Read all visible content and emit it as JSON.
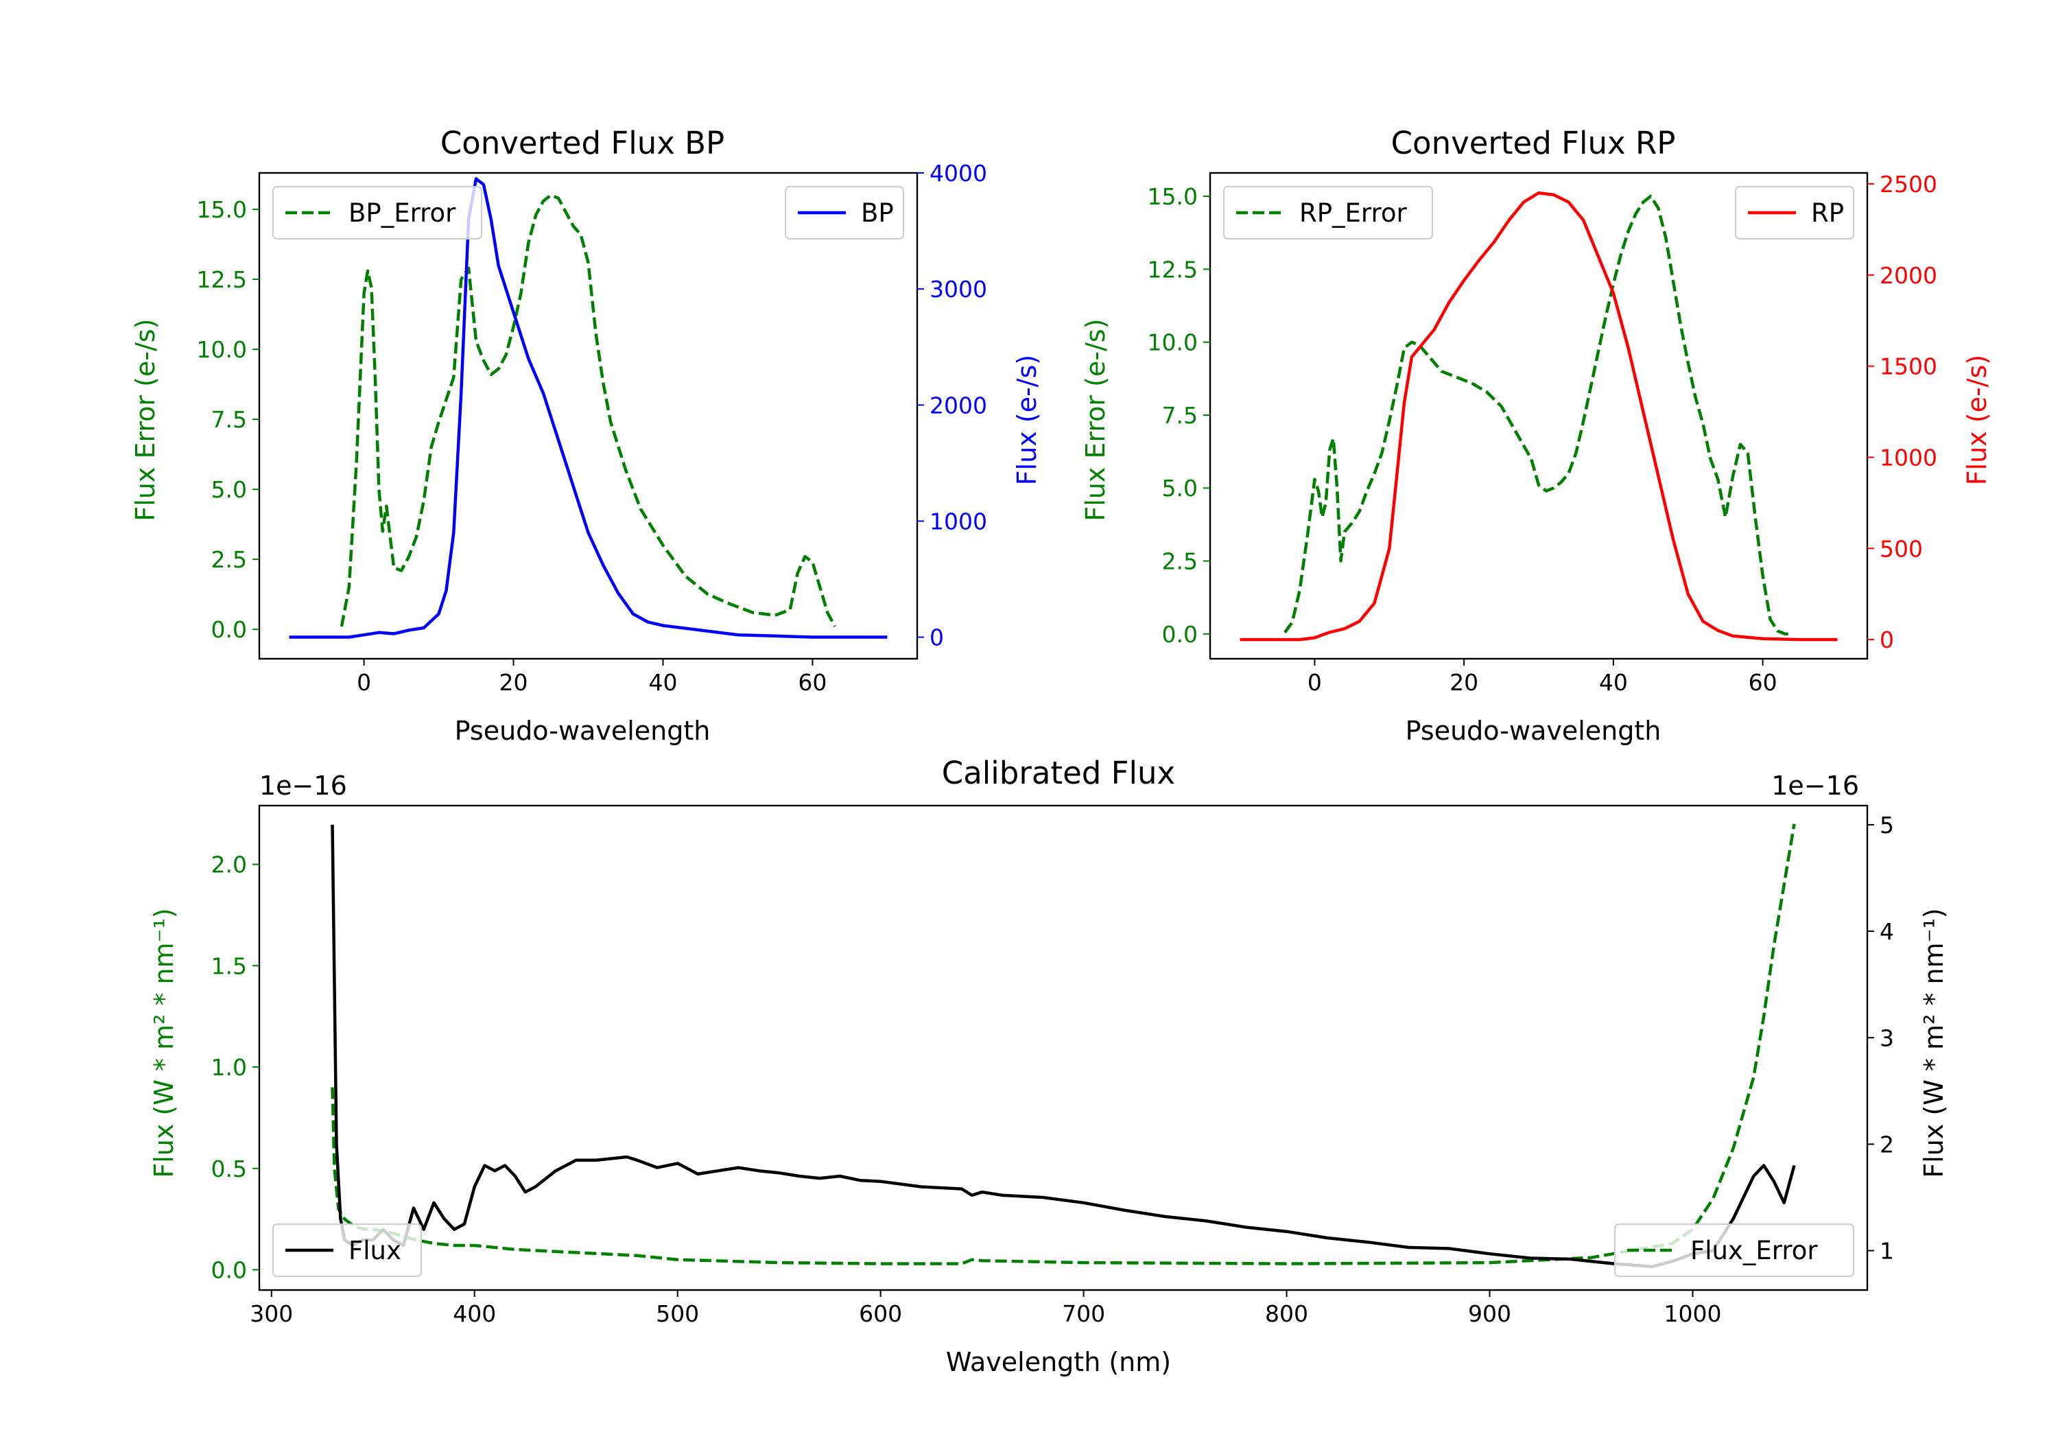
{
  "figure": {
    "background": "#ffffff"
  },
  "chart_data": [
    {
      "id": "bp",
      "type": "line",
      "title": "Converted Flux BP",
      "xlabel": "Pseudo-wavelength",
      "ylabel_left": "Flux Error (e-/s)",
      "ylabel_right": "Flux (e-/s)",
      "xlim": [
        -14,
        74
      ],
      "ylim_left": [
        -1.05,
        16.3
      ],
      "ylim_right": [
        -186,
        4000
      ],
      "xticks": [
        0,
        20,
        40,
        60
      ],
      "xtick_labels": [
        "0",
        "20",
        "40",
        "60"
      ],
      "yticks_left": [
        0,
        2.5,
        5,
        7.5,
        10,
        12.5,
        15
      ],
      "ytick_labels_left": [
        "0.0",
        "2.5",
        "5.0",
        "7.5",
        "10.0",
        "12.5",
        "15.0"
      ],
      "yticks_right": [
        0,
        1000,
        2000,
        3000,
        4000
      ],
      "ytick_labels_right": [
        "0",
        "1000",
        "2000",
        "3000",
        "4000"
      ],
      "left_axis_color": "#008000",
      "right_axis_color": "#0000ff",
      "legend_left_position": "upper-left",
      "legend_right_position": "upper-right",
      "series_left": {
        "name": "BP_Error",
        "color": "#008000",
        "style": "dashed",
        "x": [
          -3,
          -2,
          -1,
          0,
          0.5,
          1,
          1.5,
          2,
          2.5,
          3,
          3.5,
          4,
          5,
          6,
          7,
          8,
          9,
          10,
          11,
          12,
          13,
          14,
          15,
          16,
          17,
          18,
          19,
          20,
          21,
          22,
          23,
          24,
          25,
          26,
          27,
          28,
          29,
          30,
          31,
          32,
          33,
          35,
          37,
          40,
          43,
          46,
          49,
          52,
          55,
          57,
          58,
          59,
          60,
          61,
          62,
          63
        ],
        "y": [
          0.1,
          1.5,
          6.0,
          12.0,
          12.8,
          12.2,
          9.0,
          5.0,
          3.5,
          4.4,
          3.3,
          2.2,
          2.1,
          2.6,
          3.3,
          4.6,
          6.5,
          7.4,
          8.2,
          9.0,
          12.5,
          12.9,
          10.3,
          9.6,
          9.1,
          9.3,
          9.8,
          10.8,
          12.0,
          13.8,
          14.8,
          15.3,
          15.5,
          15.4,
          14.9,
          14.4,
          14.1,
          13.1,
          10.6,
          8.8,
          7.4,
          5.7,
          4.3,
          3.0,
          1.9,
          1.25,
          0.9,
          0.6,
          0.5,
          0.7,
          2.0,
          2.6,
          2.4,
          1.5,
          0.6,
          0.1
        ]
      },
      "series_right": {
        "name": "BP",
        "color": "#0000ff",
        "style": "solid",
        "x": [
          -10,
          -5,
          -2,
          0,
          2,
          4,
          6,
          8,
          10,
          11,
          12,
          13,
          14,
          15,
          16,
          17,
          18,
          20,
          22,
          24,
          26,
          28,
          30,
          32,
          34,
          36,
          38,
          40,
          45,
          50,
          55,
          60,
          65,
          70
        ],
        "y": [
          0,
          0,
          0,
          20,
          40,
          30,
          60,
          80,
          200,
          400,
          900,
          2100,
          3600,
          3950,
          3900,
          3600,
          3200,
          2800,
          2400,
          2100,
          1700,
          1300,
          900,
          620,
          380,
          200,
          130,
          100,
          60,
          20,
          10,
          0,
          0,
          0
        ]
      }
    },
    {
      "id": "rp",
      "type": "line",
      "title": "Converted Flux RP",
      "xlabel": "Pseudo-wavelength",
      "ylabel_left": "Flux Error (e-/s)",
      "ylabel_right": "Flux (e-/s)",
      "xlim": [
        -14,
        74
      ],
      "ylim_left": [
        -0.85,
        15.8
      ],
      "ylim_right": [
        -105,
        2560
      ],
      "xticks": [
        0,
        20,
        40,
        60
      ],
      "xtick_labels": [
        "0",
        "20",
        "40",
        "60"
      ],
      "yticks_left": [
        0,
        2.5,
        5,
        7.5,
        10,
        12.5,
        15
      ],
      "ytick_labels_left": [
        "0.0",
        "2.5",
        "5.0",
        "7.5",
        "10.0",
        "12.5",
        "15.0"
      ],
      "yticks_right": [
        0,
        500,
        1000,
        1500,
        2000,
        2500
      ],
      "ytick_labels_right": [
        "0",
        "500",
        "1000",
        "1500",
        "2000",
        "2500"
      ],
      "left_axis_color": "#008000",
      "right_axis_color": "#ff0000",
      "legend_left_position": "upper-left",
      "legend_right_position": "upper-right",
      "series_left": {
        "name": "RP_Error",
        "color": "#008000",
        "style": "dashed",
        "x": [
          -4,
          -3,
          -2,
          -1,
          0,
          0.5,
          1,
          1.5,
          2,
          2.5,
          3,
          3.5,
          4,
          5,
          6,
          7,
          8,
          9,
          10,
          11,
          12,
          13,
          14,
          15,
          17,
          19,
          21,
          23,
          25,
          27,
          29,
          30,
          31,
          32,
          33,
          34,
          35,
          36,
          37,
          38,
          39,
          40,
          41,
          42,
          43,
          44,
          45,
          46,
          47,
          48,
          49,
          50,
          51,
          52,
          53,
          54,
          55,
          56,
          57,
          58,
          59,
          60,
          61,
          62,
          63,
          64
        ],
        "y": [
          0.05,
          0.4,
          1.5,
          3.3,
          5.3,
          4.9,
          4.0,
          4.5,
          6.3,
          6.7,
          5.0,
          2.5,
          3.5,
          3.8,
          4.2,
          4.9,
          5.5,
          6.2,
          7.3,
          8.5,
          9.8,
          10.0,
          9.9,
          9.6,
          9.0,
          8.8,
          8.6,
          8.3,
          7.8,
          6.9,
          6.0,
          5.1,
          4.9,
          5.0,
          5.2,
          5.5,
          6.2,
          7.3,
          8.5,
          9.7,
          10.9,
          12.0,
          13.0,
          13.8,
          14.4,
          14.8,
          15.0,
          14.6,
          13.6,
          12.1,
          10.6,
          9.3,
          8.1,
          7.2,
          6.0,
          5.3,
          4.0,
          5.4,
          6.5,
          6.2,
          4.0,
          2.0,
          0.5,
          0.1,
          0.0,
          0.0
        ]
      },
      "series_right": {
        "name": "RP",
        "color": "#ff0000",
        "style": "solid",
        "x": [
          -10,
          -5,
          -2,
          0,
          2,
          4,
          6,
          8,
          10,
          11,
          12,
          13,
          14,
          16,
          18,
          20,
          22,
          24,
          26,
          28,
          30,
          32,
          34,
          36,
          38,
          40,
          42,
          44,
          46,
          48,
          50,
          52,
          54,
          56,
          60,
          65,
          70
        ],
        "y": [
          0,
          0,
          0,
          10,
          40,
          60,
          100,
          200,
          500,
          900,
          1300,
          1550,
          1600,
          1700,
          1850,
          1970,
          2080,
          2180,
          2300,
          2400,
          2450,
          2440,
          2400,
          2300,
          2100,
          1900,
          1600,
          1250,
          900,
          550,
          250,
          100,
          50,
          20,
          5,
          0,
          0
        ]
      }
    },
    {
      "id": "calibrated",
      "type": "line",
      "title": "Calibrated Flux",
      "xlabel": "Wavelength (nm)",
      "ylabel_left": "Flux (W * m² * nm⁻¹)",
      "ylabel_right": "Flux (W * m² * nm⁻¹)",
      "offset_left": "1e−16",
      "offset_right": "1e−16",
      "xlim": [
        294,
        1086
      ],
      "ylim_left": [
        -0.1,
        2.29
      ],
      "ylim_right": [
        0.63,
        5.18
      ],
      "xticks": [
        300,
        400,
        500,
        600,
        700,
        800,
        900,
        1000
      ],
      "xtick_labels": [
        "300",
        "400",
        "500",
        "600",
        "700",
        "800",
        "900",
        "1000"
      ],
      "yticks_left": [
        0,
        0.5,
        1.0,
        1.5,
        2.0
      ],
      "ytick_labels_left": [
        "0.0",
        "0.5",
        "1.0",
        "1.5",
        "2.0"
      ],
      "yticks_right": [
        1,
        2,
        3,
        4,
        5
      ],
      "ytick_labels_right": [
        "1",
        "2",
        "3",
        "4",
        "5"
      ],
      "left_axis_color": "#008000",
      "right_axis_color": "#000000",
      "legend_left_position": "lower-right",
      "legend_right_position": "lower-left",
      "series_left": {
        "name": "Flux_Error",
        "color": "#008000",
        "style": "dashed",
        "x": [
          330,
          331,
          333,
          336,
          340,
          345,
          350,
          360,
          370,
          380,
          390,
          400,
          420,
          440,
          460,
          480,
          500,
          550,
          600,
          640,
          645,
          650,
          700,
          800,
          900,
          950,
          990,
          1000,
          1010,
          1020,
          1030,
          1035,
          1040,
          1045,
          1050
        ],
        "y": [
          0.9,
          0.5,
          0.3,
          0.25,
          0.22,
          0.2,
          0.2,
          0.18,
          0.15,
          0.13,
          0.12,
          0.12,
          0.1,
          0.09,
          0.08,
          0.07,
          0.05,
          0.035,
          0.03,
          0.03,
          0.05,
          0.045,
          0.035,
          0.03,
          0.035,
          0.06,
          0.13,
          0.2,
          0.35,
          0.6,
          0.95,
          1.25,
          1.6,
          1.9,
          2.2
        ]
      },
      "series_right": {
        "name": "Flux",
        "color": "#000000",
        "style": "solid",
        "x": [
          330,
          331,
          332,
          334,
          336,
          340,
          345,
          350,
          355,
          360,
          365,
          370,
          375,
          380,
          385,
          390,
          395,
          400,
          405,
          410,
          415,
          420,
          425,
          430,
          440,
          450,
          460,
          470,
          475,
          480,
          490,
          500,
          510,
          520,
          530,
          540,
          550,
          560,
          570,
          580,
          590,
          600,
          620,
          640,
          645,
          650,
          660,
          680,
          700,
          720,
          740,
          760,
          780,
          800,
          820,
          840,
          860,
          880,
          900,
          920,
          940,
          960,
          980,
          990,
          1000,
          1010,
          1020,
          1030,
          1035,
          1040,
          1045,
          1050
        ],
        "y": [
          5.0,
          3.5,
          2.0,
          1.3,
          1.1,
          1.05,
          1.1,
          1.1,
          1.2,
          1.1,
          1.05,
          1.4,
          1.2,
          1.45,
          1.3,
          1.2,
          1.25,
          1.6,
          1.8,
          1.75,
          1.8,
          1.7,
          1.55,
          1.6,
          1.75,
          1.85,
          1.85,
          1.87,
          1.88,
          1.85,
          1.78,
          1.82,
          1.72,
          1.75,
          1.78,
          1.75,
          1.73,
          1.7,
          1.68,
          1.7,
          1.66,
          1.65,
          1.6,
          1.58,
          1.52,
          1.55,
          1.52,
          1.5,
          1.45,
          1.38,
          1.32,
          1.28,
          1.22,
          1.18,
          1.12,
          1.08,
          1.03,
          1.02,
          0.97,
          0.93,
          0.92,
          0.88,
          0.85,
          0.9,
          0.97,
          1.0,
          1.3,
          1.7,
          1.8,
          1.65,
          1.45,
          1.8
        ]
      }
    }
  ]
}
